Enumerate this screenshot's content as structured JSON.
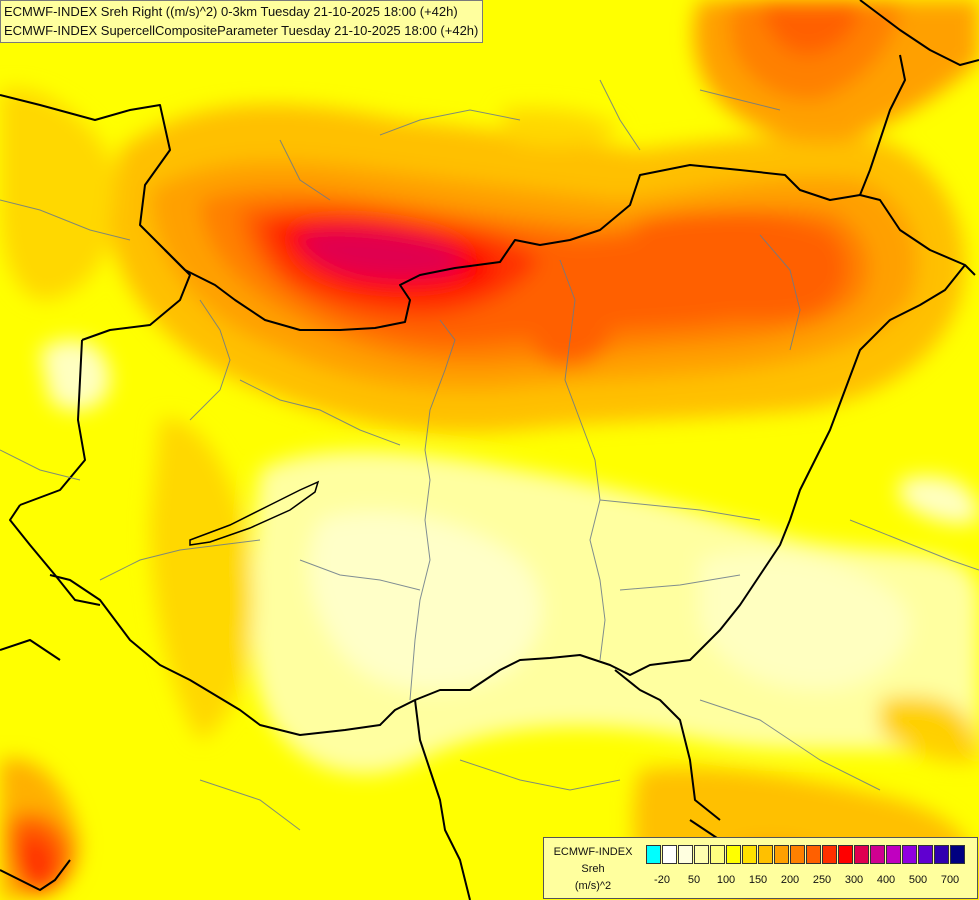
{
  "header": {
    "line1": "ECMWF-INDEX Sreh Right ((m/s)^2) 0-3km Tuesday 21-10-2025 18:00 (+42h)",
    "line2": "ECMWF-INDEX SupercellCompositeParameter Tuesday 21-10-2025 18:00 (+42h)"
  },
  "legend": {
    "model": "ECMWF-INDEX",
    "parameter": "Sreh",
    "unit": "(m/s)^2",
    "colors": [
      "#00ffff",
      "#ffffff",
      "#ffffe0",
      "#ffffb0",
      "#ffff80",
      "#ffff00",
      "#ffe000",
      "#ffc000",
      "#ffa000",
      "#ff8000",
      "#ff6000",
      "#ff3000",
      "#ff0000",
      "#e00050",
      "#d00090",
      "#c000c0",
      "#9000e0",
      "#6000d0",
      "#3000b0",
      "#000080"
    ],
    "ticks": [
      "-20",
      "50",
      "100",
      "150",
      "200",
      "250",
      "300",
      "400",
      "500",
      "700"
    ]
  }
}
